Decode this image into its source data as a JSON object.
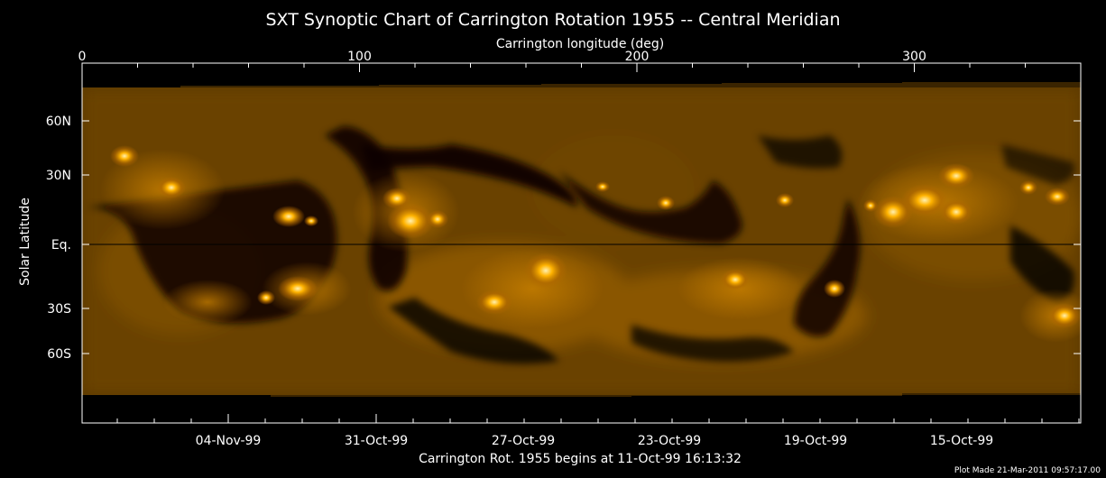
{
  "chart_data": {
    "type": "heatmap",
    "title": "SXT Synoptic Chart of Carrington Rotation 1955 -- Central Meridian",
    "top_axis_label": "Carrington longitude (deg)",
    "x_range": [
      0,
      360
    ],
    "top_ticks": [
      {
        "value": 0,
        "label": "0"
      },
      {
        "value": 100,
        "label": "100"
      },
      {
        "value": 200,
        "label": "200"
      },
      {
        "value": 300,
        "label": "300"
      }
    ],
    "ylabel": "Solar Latitude",
    "y_ticks": [
      {
        "label": "60N"
      },
      {
        "label": "30N"
      },
      {
        "label": "Eq."
      },
      {
        "label": "30S"
      },
      {
        "label": "60S"
      }
    ],
    "bottom_ticks": [
      {
        "label": "04-Nov-99"
      },
      {
        "label": "31-Oct-99"
      },
      {
        "label": "27-Oct-99"
      },
      {
        "label": "23-Oct-99"
      },
      {
        "label": "19-Oct-99"
      },
      {
        "label": "15-Oct-99"
      }
    ],
    "bottom_axis_label": "Carrington Rot. 1955 begins at 11-Oct-99 16:13:32",
    "footer_note": "Plot Made 21-Mar-2011 09:57:17.00",
    "colormap": [
      "#000000",
      "#4a2a00",
      "#a86a00",
      "#f0a000",
      "#ffe8a0"
    ]
  }
}
